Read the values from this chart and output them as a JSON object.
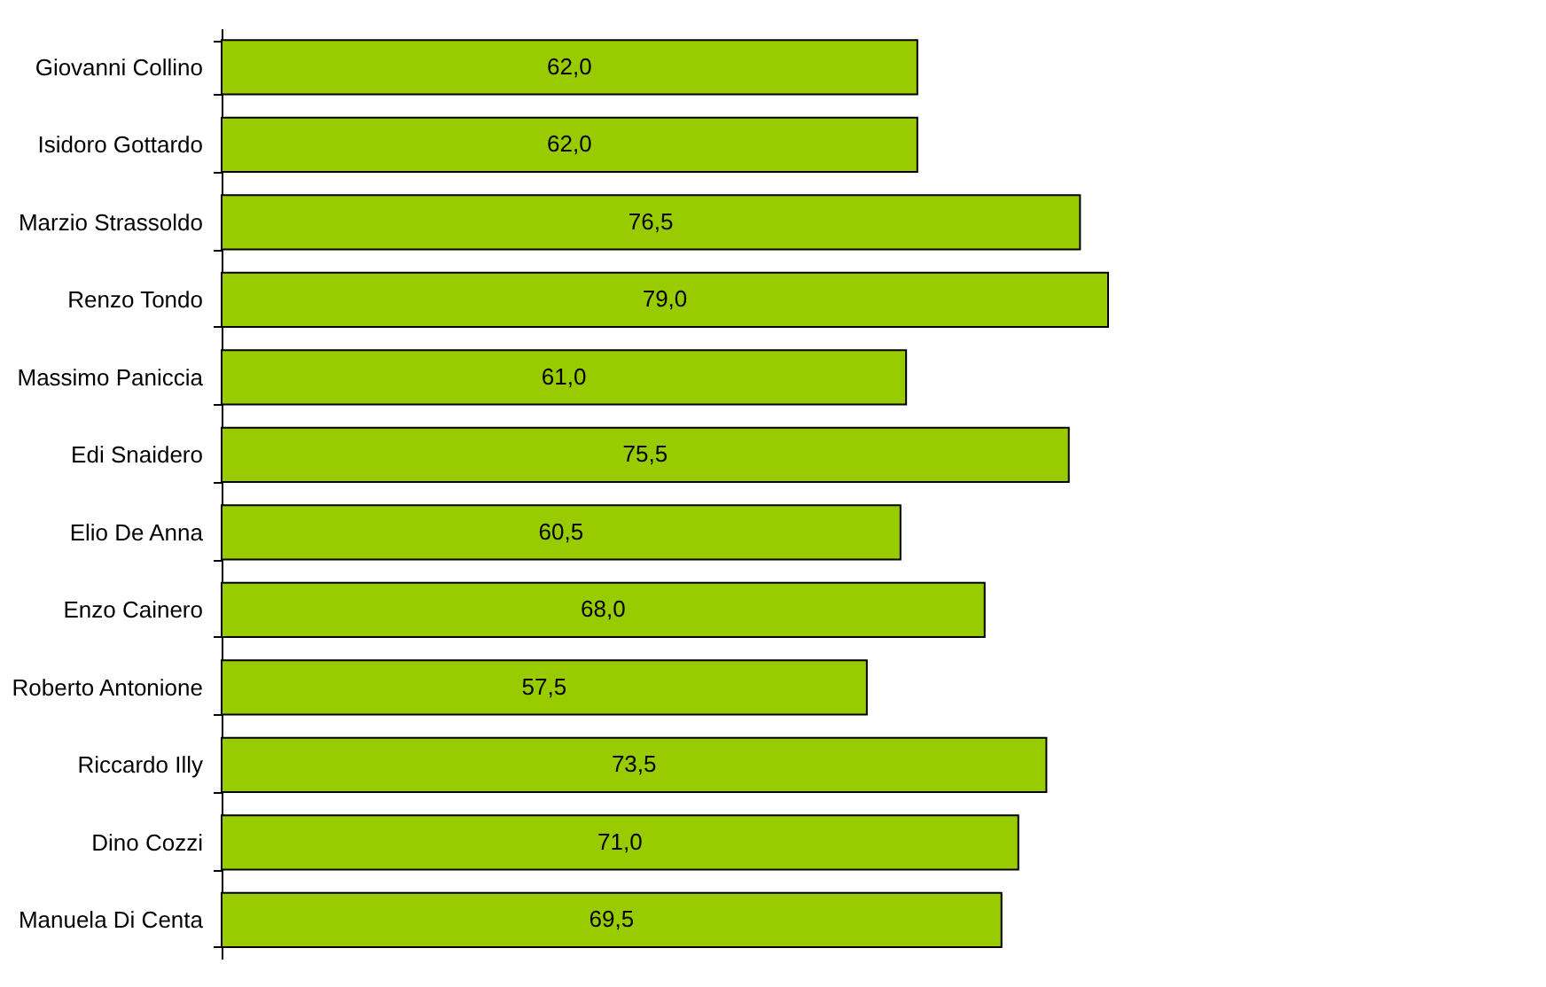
{
  "chart_data": {
    "type": "bar",
    "orientation": "horizontal",
    "categories": [
      "Giovanni Collino",
      "Isidoro Gottardo",
      "Marzio Strassoldo",
      "Renzo Tondo",
      "Massimo Paniccia",
      "Edi Snaidero",
      "Elio De Anna",
      "Enzo Cainero",
      "Roberto Antonione",
      "Riccardo Illy",
      "Dino Cozzi",
      "Manuela Di Centa"
    ],
    "values": [
      62.0,
      62.0,
      76.5,
      79.0,
      61.0,
      75.5,
      60.5,
      68.0,
      57.5,
      73.5,
      71.0,
      69.5
    ],
    "value_labels": [
      "62,0",
      "62,0",
      "76,5",
      "79,0",
      "61,0",
      "75,5",
      "60,5",
      "68,0",
      "57,5",
      "73,5",
      "71,0",
      "69,5"
    ],
    "color": "#99cc00",
    "tick_labels": "y"
  }
}
